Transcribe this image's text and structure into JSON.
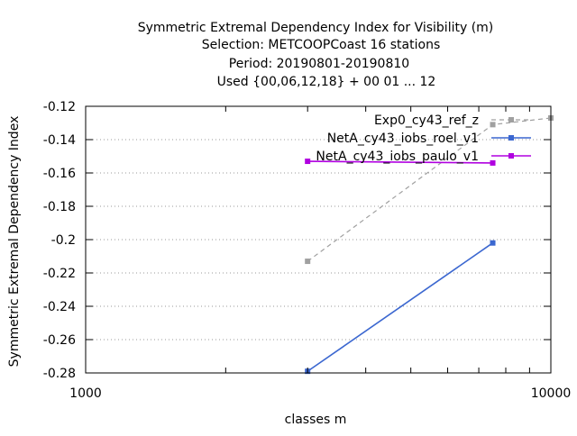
{
  "chart_data": {
    "type": "line",
    "title_lines": [
      "Symmetric Extremal Dependency Index  for Visibility (m)",
      "Selection: METCOOPCoast     16 stations",
      "Period: 20190801-20190810",
      "Used {00,06,12,18} + 00 01 ... 12"
    ],
    "xlabel": "classes m",
    "ylabel": "Symmetric Extremal Dependency Index",
    "xscale": "log",
    "xlim": [
      1000,
      10000
    ],
    "ylim": [
      -0.28,
      -0.12
    ],
    "xticks": [
      {
        "value": 1000,
        "label": "1000"
      },
      {
        "value": 10000,
        "label": "10000"
      }
    ],
    "yticks": [
      {
        "value": -0.12,
        "label": "-0.12"
      },
      {
        "value": -0.14,
        "label": "-0.14"
      },
      {
        "value": -0.16,
        "label": "-0.16"
      },
      {
        "value": -0.18,
        "label": "-0.18"
      },
      {
        "value": -0.2,
        "label": "-0.2"
      },
      {
        "value": -0.22,
        "label": "-0.22"
      },
      {
        "value": -0.24,
        "label": "-0.24"
      },
      {
        "value": -0.26,
        "label": "-0.26"
      },
      {
        "value": -0.28,
        "label": "-0.28"
      }
    ],
    "grid": "horizontal dotted",
    "legend_position": "top-right",
    "series": [
      {
        "name": "Exp0_cy43_ref_z",
        "color": "#a0a0a0",
        "dash": true,
        "x": [
          3000,
          7500,
          10000
        ],
        "y": [
          -0.213,
          -0.131,
          -0.127
        ]
      },
      {
        "name": "NetA_cy43_iobs_roel_v1",
        "color": "#3b67d0",
        "dash": false,
        "x": [
          3000,
          7500
        ],
        "y": [
          -0.279,
          -0.202
        ]
      },
      {
        "name": "NetA_cy43_iobs_paulo_v1",
        "color": "#b000e0",
        "dash": false,
        "x": [
          3000,
          7500
        ],
        "y": [
          -0.153,
          -0.154
        ]
      }
    ]
  }
}
